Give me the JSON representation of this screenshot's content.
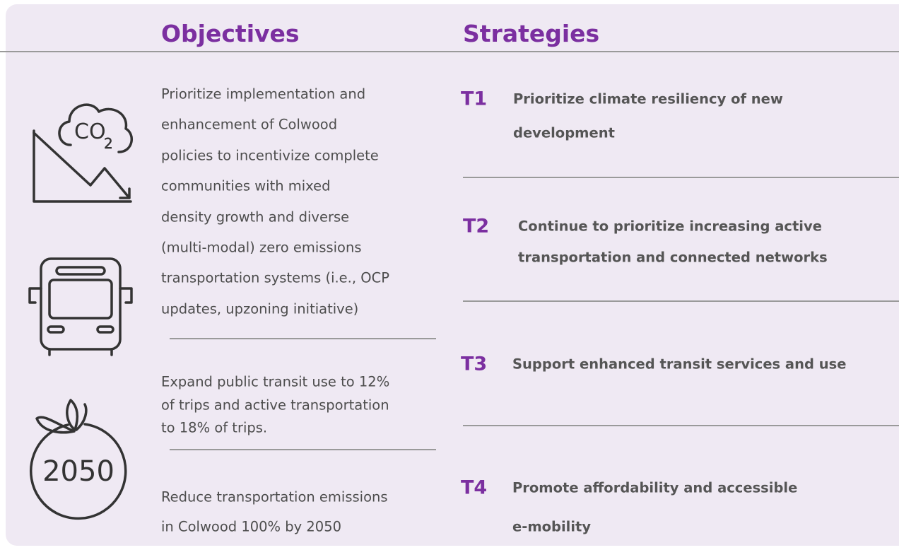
{
  "header": {
    "objectives": "Objectives",
    "strategies": "Strategies"
  },
  "icons": {
    "co2": {
      "co": "CO",
      "sub": "2"
    },
    "year": "2050"
  },
  "objectives": [
    {
      "lines": [
        "Prioritize implementation and",
        "enhancement of Colwood",
        "policies to incentivize complete",
        "communities with mixed",
        "density growth and diverse",
        "(multi-modal) zero emissions",
        "transportation systems (i.e., OCP",
        "updates, upzoning initiative)"
      ]
    },
    {
      "lines": [
        "Expand public transit use to 12%",
        "of trips and active transportation",
        "to 18% of trips."
      ]
    },
    {
      "lines": [
        "Reduce transportation emissions",
        "in Colwood 100% by 2050"
      ]
    }
  ],
  "strategies": [
    {
      "code": "T1",
      "lines": [
        "Prioritize climate resiliency of new",
        "development"
      ]
    },
    {
      "code": "T2",
      "lines": [
        "Continue to prioritize increasing active",
        "transportation and connected networks"
      ]
    },
    {
      "code": "T3",
      "lines": [
        "Support enhanced transit services and use"
      ]
    },
    {
      "code": "T4",
      "lines": [
        "Promote affordability and accessible",
        "e-mobility"
      ]
    }
  ]
}
